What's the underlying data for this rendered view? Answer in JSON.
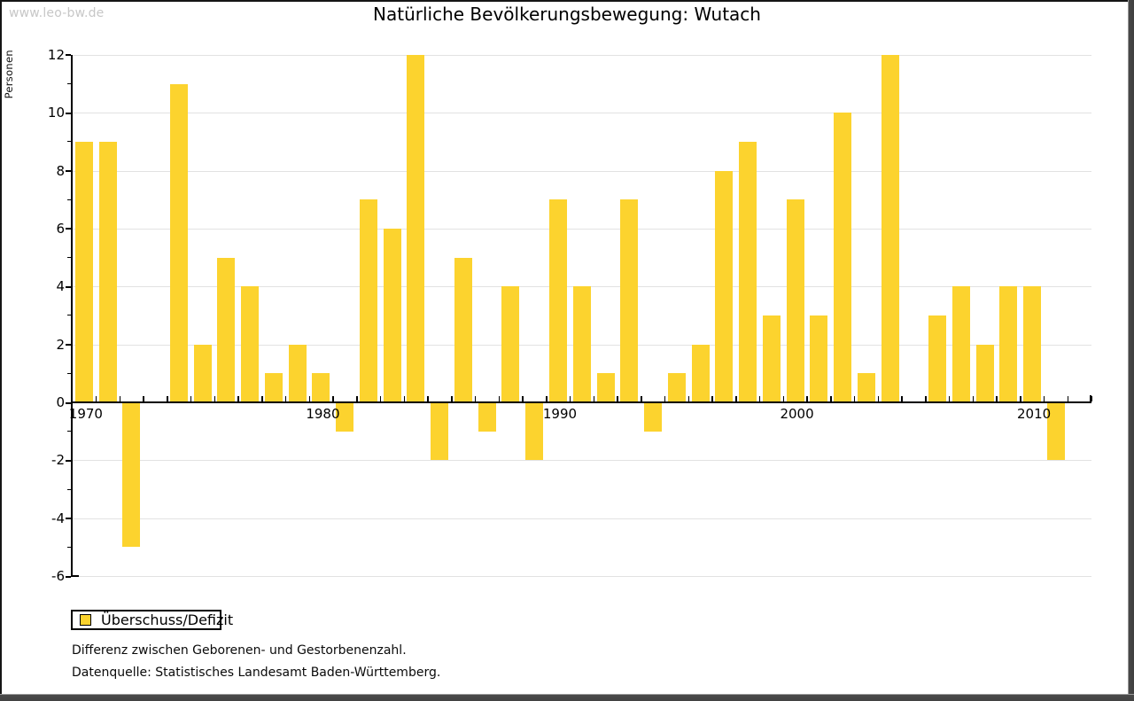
{
  "window": {
    "watermark": "www.leo-bw.de"
  },
  "header": {
    "title": "Natürliche Bevölkerungsbewegung: Wutach"
  },
  "chart_data": {
    "type": "bar",
    "title": "Natürliche Bevölkerungsbewegung: Wutach",
    "xlabel": "",
    "ylabel": "Personen",
    "categories": [
      "1970",
      "1971",
      "1972",
      "1973",
      "1974",
      "1975",
      "1976",
      "1977",
      "1978",
      "1979",
      "1980",
      "1981",
      "1982",
      "1983",
      "1984",
      "1985",
      "1986",
      "1987",
      "1988",
      "1989",
      "1990",
      "1991",
      "1992",
      "1993",
      "1994",
      "1995",
      "1996",
      "1997",
      "1998",
      "1999",
      "2000",
      "2001",
      "2002",
      "2003",
      "2004",
      "2005",
      "2006",
      "2007",
      "2008",
      "2009",
      "2010",
      "2011"
    ],
    "values": [
      9,
      9,
      -5,
      0,
      11,
      2,
      5,
      4,
      1,
      2,
      1,
      -1,
      7,
      6,
      12,
      -2,
      5,
      -1,
      4,
      -2,
      7,
      4,
      1,
      7,
      -1,
      1,
      2,
      8,
      9,
      3,
      7,
      3,
      10,
      1,
      12,
      0,
      3,
      4,
      2,
      4,
      4,
      -2
    ],
    "ylim": [
      -6,
      12
    ],
    "ytick_step": 2,
    "ytick_labels": [
      "12",
      "10",
      "8",
      "6",
      "4",
      "2",
      "0",
      "-2",
      "-4",
      "-6"
    ],
    "xtick_labels": [
      "1970",
      "1980",
      "1990",
      "2000",
      "2010"
    ],
    "grid": true,
    "bar_color": "#FCD32E",
    "grid_color": "#e2e2e2",
    "legend_position": "bottom-left",
    "legend": [
      {
        "label": "Überschuss/Defizit",
        "color": "#FCD32E"
      }
    ]
  },
  "footnotes": {
    "line1": "Differenz zwischen Geborenen- und Gestorbenenzahl.",
    "line2": "Datenquelle: Statistisches Landesamt Baden-Württemberg."
  }
}
